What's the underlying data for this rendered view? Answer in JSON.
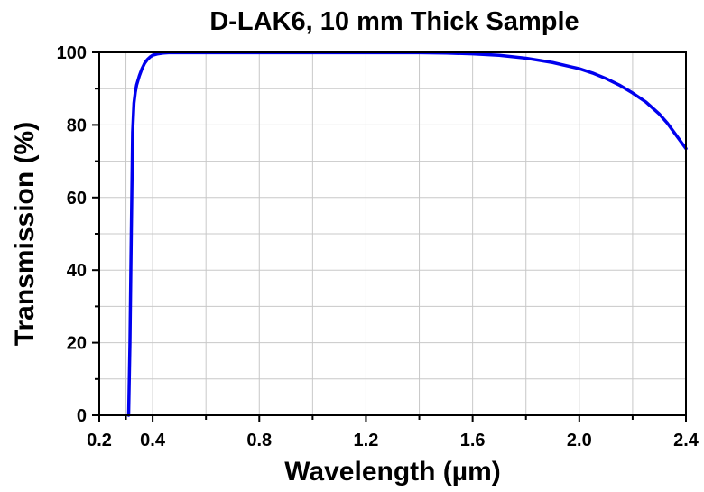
{
  "chart_data": {
    "type": "line",
    "title": "D-LAK6, 10 mm Thick Sample",
    "xlabel": "Wavelength (µm)",
    "ylabel": "Transmission (%)",
    "xlim": [
      0.2,
      2.4
    ],
    "ylim": [
      0,
      100
    ],
    "x_ticks": [
      0.2,
      0.4,
      0.8,
      1.2,
      1.6,
      2.0,
      2.4
    ],
    "x_tick_labels": [
      "0.2",
      "0.4",
      "0.8",
      "1.2",
      "1.6",
      "2.0",
      "2.4"
    ],
    "x_minor_ticks": [
      0.3,
      0.6,
      1.0,
      1.4,
      1.8,
      2.2
    ],
    "y_ticks": [
      0,
      20,
      40,
      60,
      80,
      100
    ],
    "y_tick_labels": [
      "0",
      "20",
      "40",
      "60",
      "80",
      "100"
    ],
    "grid": true,
    "series": [
      {
        "color": "#0000ee",
        "x": [
          0.31,
          0.315,
          0.32,
          0.325,
          0.33,
          0.335,
          0.34,
          0.35,
          0.36,
          0.37,
          0.38,
          0.39,
          0.4,
          0.42,
          0.44,
          0.46,
          0.5,
          0.6,
          0.8,
          1.0,
          1.2,
          1.4,
          1.5,
          1.6,
          1.7,
          1.8,
          1.9,
          2.0,
          2.05,
          2.1,
          2.15,
          2.2,
          2.25,
          2.3,
          2.33,
          2.36,
          2.38,
          2.4
        ],
        "y": [
          0,
          20,
          50,
          78,
          86,
          89,
          91,
          93.5,
          95.5,
          97,
          98,
          98.7,
          99.2,
          99.6,
          99.8,
          99.9,
          99.9,
          99.9,
          99.9,
          99.9,
          99.9,
          99.9,
          99.8,
          99.6,
          99.2,
          98.4,
          97.2,
          95.5,
          94.3,
          92.8,
          91,
          88.8,
          86.3,
          83,
          80.5,
          77.5,
          75.5,
          73.5
        ]
      }
    ]
  }
}
